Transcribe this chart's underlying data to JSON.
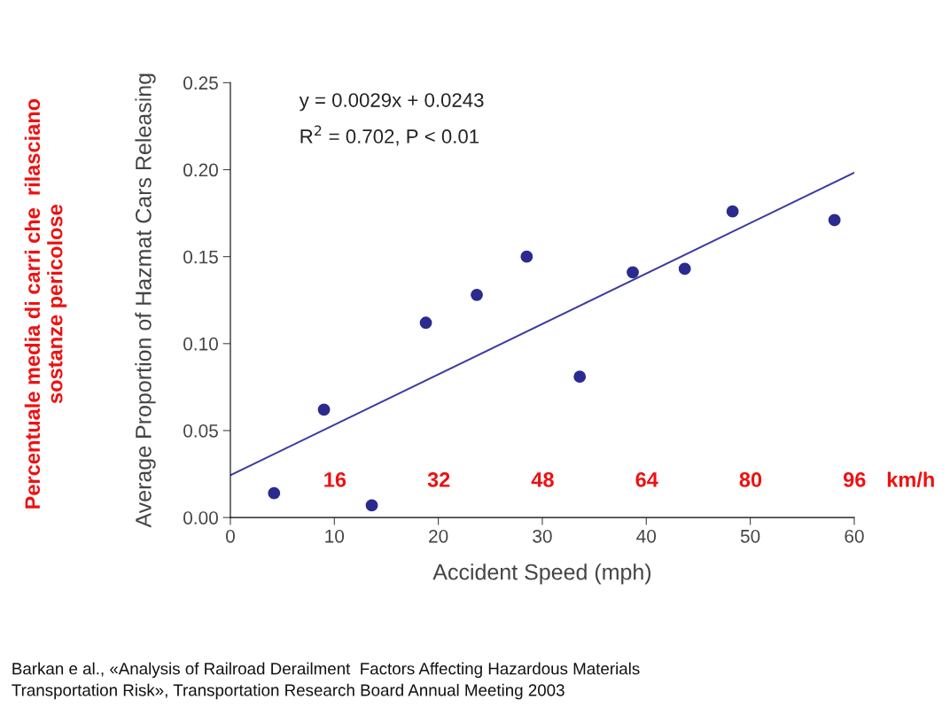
{
  "chart_data": {
    "type": "scatter",
    "xlabel": "Accident Speed (mph)",
    "ylabel": "Average Proportion of Hazmat Cars Releasing",
    "xlim": [
      0,
      60
    ],
    "xticks": [
      0,
      10,
      20,
      30,
      40,
      50,
      60
    ],
    "ylim": [
      0,
      0.25
    ],
    "yticks": [
      {
        "value": 0,
        "label": "0.00"
      },
      {
        "value": 0.05,
        "label": "0.05"
      },
      {
        "value": 0.1,
        "label": "0.10"
      },
      {
        "value": 0.15,
        "label": "0.15"
      },
      {
        "value": 0.2,
        "label": "0.20"
      },
      {
        "value": 0.25,
        "label": "0.25"
      }
    ],
    "grid": false,
    "legend": false,
    "series": [
      {
        "marker": "circle",
        "color": "#2b2b8f",
        "x": [
          4.2,
          9.0,
          13.6,
          18.8,
          23.7,
          28.5,
          33.6,
          38.7,
          43.7,
          48.3,
          58.1
        ],
        "values": [
          0.014,
          0.062,
          0.007,
          0.112,
          0.128,
          0.15,
          0.081,
          0.141,
          0.143,
          0.176,
          0.171
        ]
      },
      {
        "type": "line",
        "color": "#3c3ca0",
        "x": [
          0,
          60
        ],
        "values": [
          0.0243,
          0.1983
        ]
      }
    ],
    "annotations": [
      "y = 0.0029x + 0.0243",
      "R$^{2}$ = 0.702, P < 0.01",
      "Percentuale media di carri che  rilasciano\nsostanze pericolose",
      "Barkan e al., «Analysis of Railroad Derailment  Factors Affecting Hazardous Materials\nTransportation Risk», Transportation Research Board Annual Meeting 2003",
      "16",
      "32",
      "48",
      "64",
      "80",
      "96",
      "km/h"
    ]
  }
}
